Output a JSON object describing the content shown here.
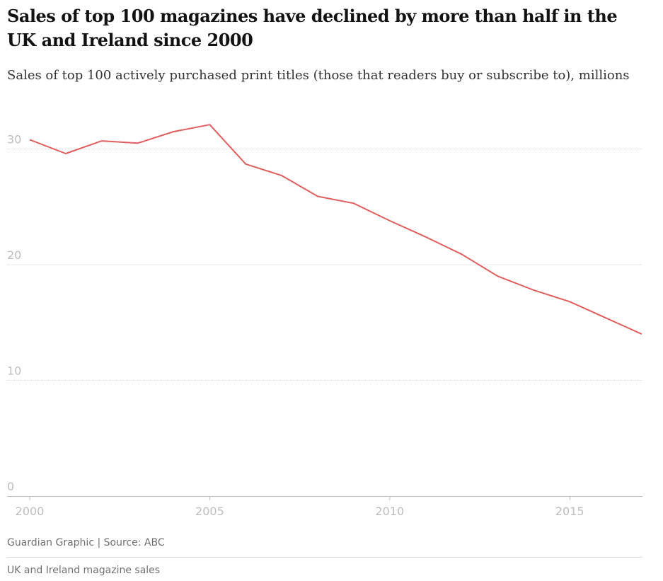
{
  "chart_data": {
    "type": "line",
    "title": "Sales of top 100 magazines have declined by more than half in the UK and Ireland since 2000",
    "subtitle": "Sales of top 100 actively purchased print titles (those that readers buy or subscribe to), millions",
    "xlabel": "",
    "ylabel": "",
    "x": [
      2000,
      2001,
      2002,
      2003,
      2004,
      2005,
      2006,
      2007,
      2008,
      2009,
      2010,
      2011,
      2012,
      2013,
      2014,
      2015,
      2016,
      2017
    ],
    "series": [
      {
        "values": [
          30.8,
          29.6,
          30.7,
          30.5,
          31.5,
          32.1,
          28.7,
          27.7,
          25.9,
          25.3,
          23.8,
          22.4,
          20.9,
          19.0,
          17.8,
          16.8,
          15.4,
          14.0
        ]
      }
    ],
    "xlim": [
      2000,
      2017
    ],
    "ylim": [
      0,
      33
    ],
    "x_ticks": [
      "2000",
      "2005",
      "2010",
      "2015"
    ],
    "y_ticks": [
      "0",
      "10",
      "20",
      "30"
    ],
    "grid": true,
    "line_color": "#e05e5e"
  },
  "source": "Guardian Graphic | Source: ABC",
  "footer": "UK and Ireland magazine sales"
}
